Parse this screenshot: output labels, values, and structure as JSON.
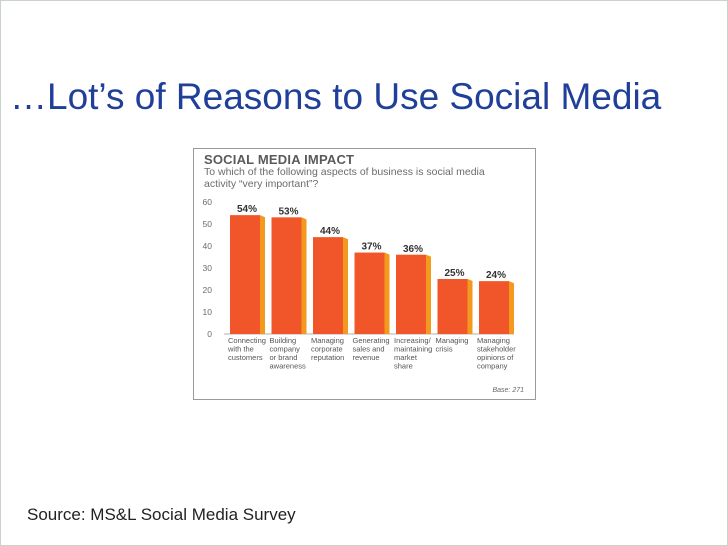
{
  "slide": {
    "title": "…Lot’s of Reasons to Use Social Media",
    "source": "Source: MS&L Social Media Survey"
  },
  "colors": {
    "title": "#1f3f99",
    "bar_front": "#f0562a",
    "bar_side": "#f39a1e",
    "chart_text": "#6b6b6b"
  },
  "chart_data": {
    "type": "bar",
    "title": "SOCIAL MEDIA IMPACT",
    "subtitle": "To which of the following aspects of business is social media activity “very important”?",
    "categories": [
      [
        "Connecting",
        "with the",
        "customers"
      ],
      [
        "Building",
        "company",
        "or brand",
        "awareness"
      ],
      [
        "Managing",
        "corporate",
        "reputation"
      ],
      [
        "Generating",
        "sales and",
        "revenue"
      ],
      [
        "Increasing/",
        "maintaining",
        "market",
        "share"
      ],
      [
        "Managing",
        "crisis"
      ],
      [
        "Managing",
        "stakeholder",
        "opinions of",
        "company"
      ]
    ],
    "values": [
      54,
      53,
      44,
      37,
      36,
      25,
      24
    ],
    "data_labels": [
      "54%",
      "53%",
      "44%",
      "37%",
      "36%",
      "25%",
      "24%"
    ],
    "yticks": [
      "0",
      "10",
      "20",
      "30",
      "40",
      "50",
      "60"
    ],
    "ylim": [
      0,
      60
    ],
    "base_note": "Base: 271",
    "xlabel": "",
    "ylabel": "",
    "grid": false,
    "legend": "none"
  }
}
